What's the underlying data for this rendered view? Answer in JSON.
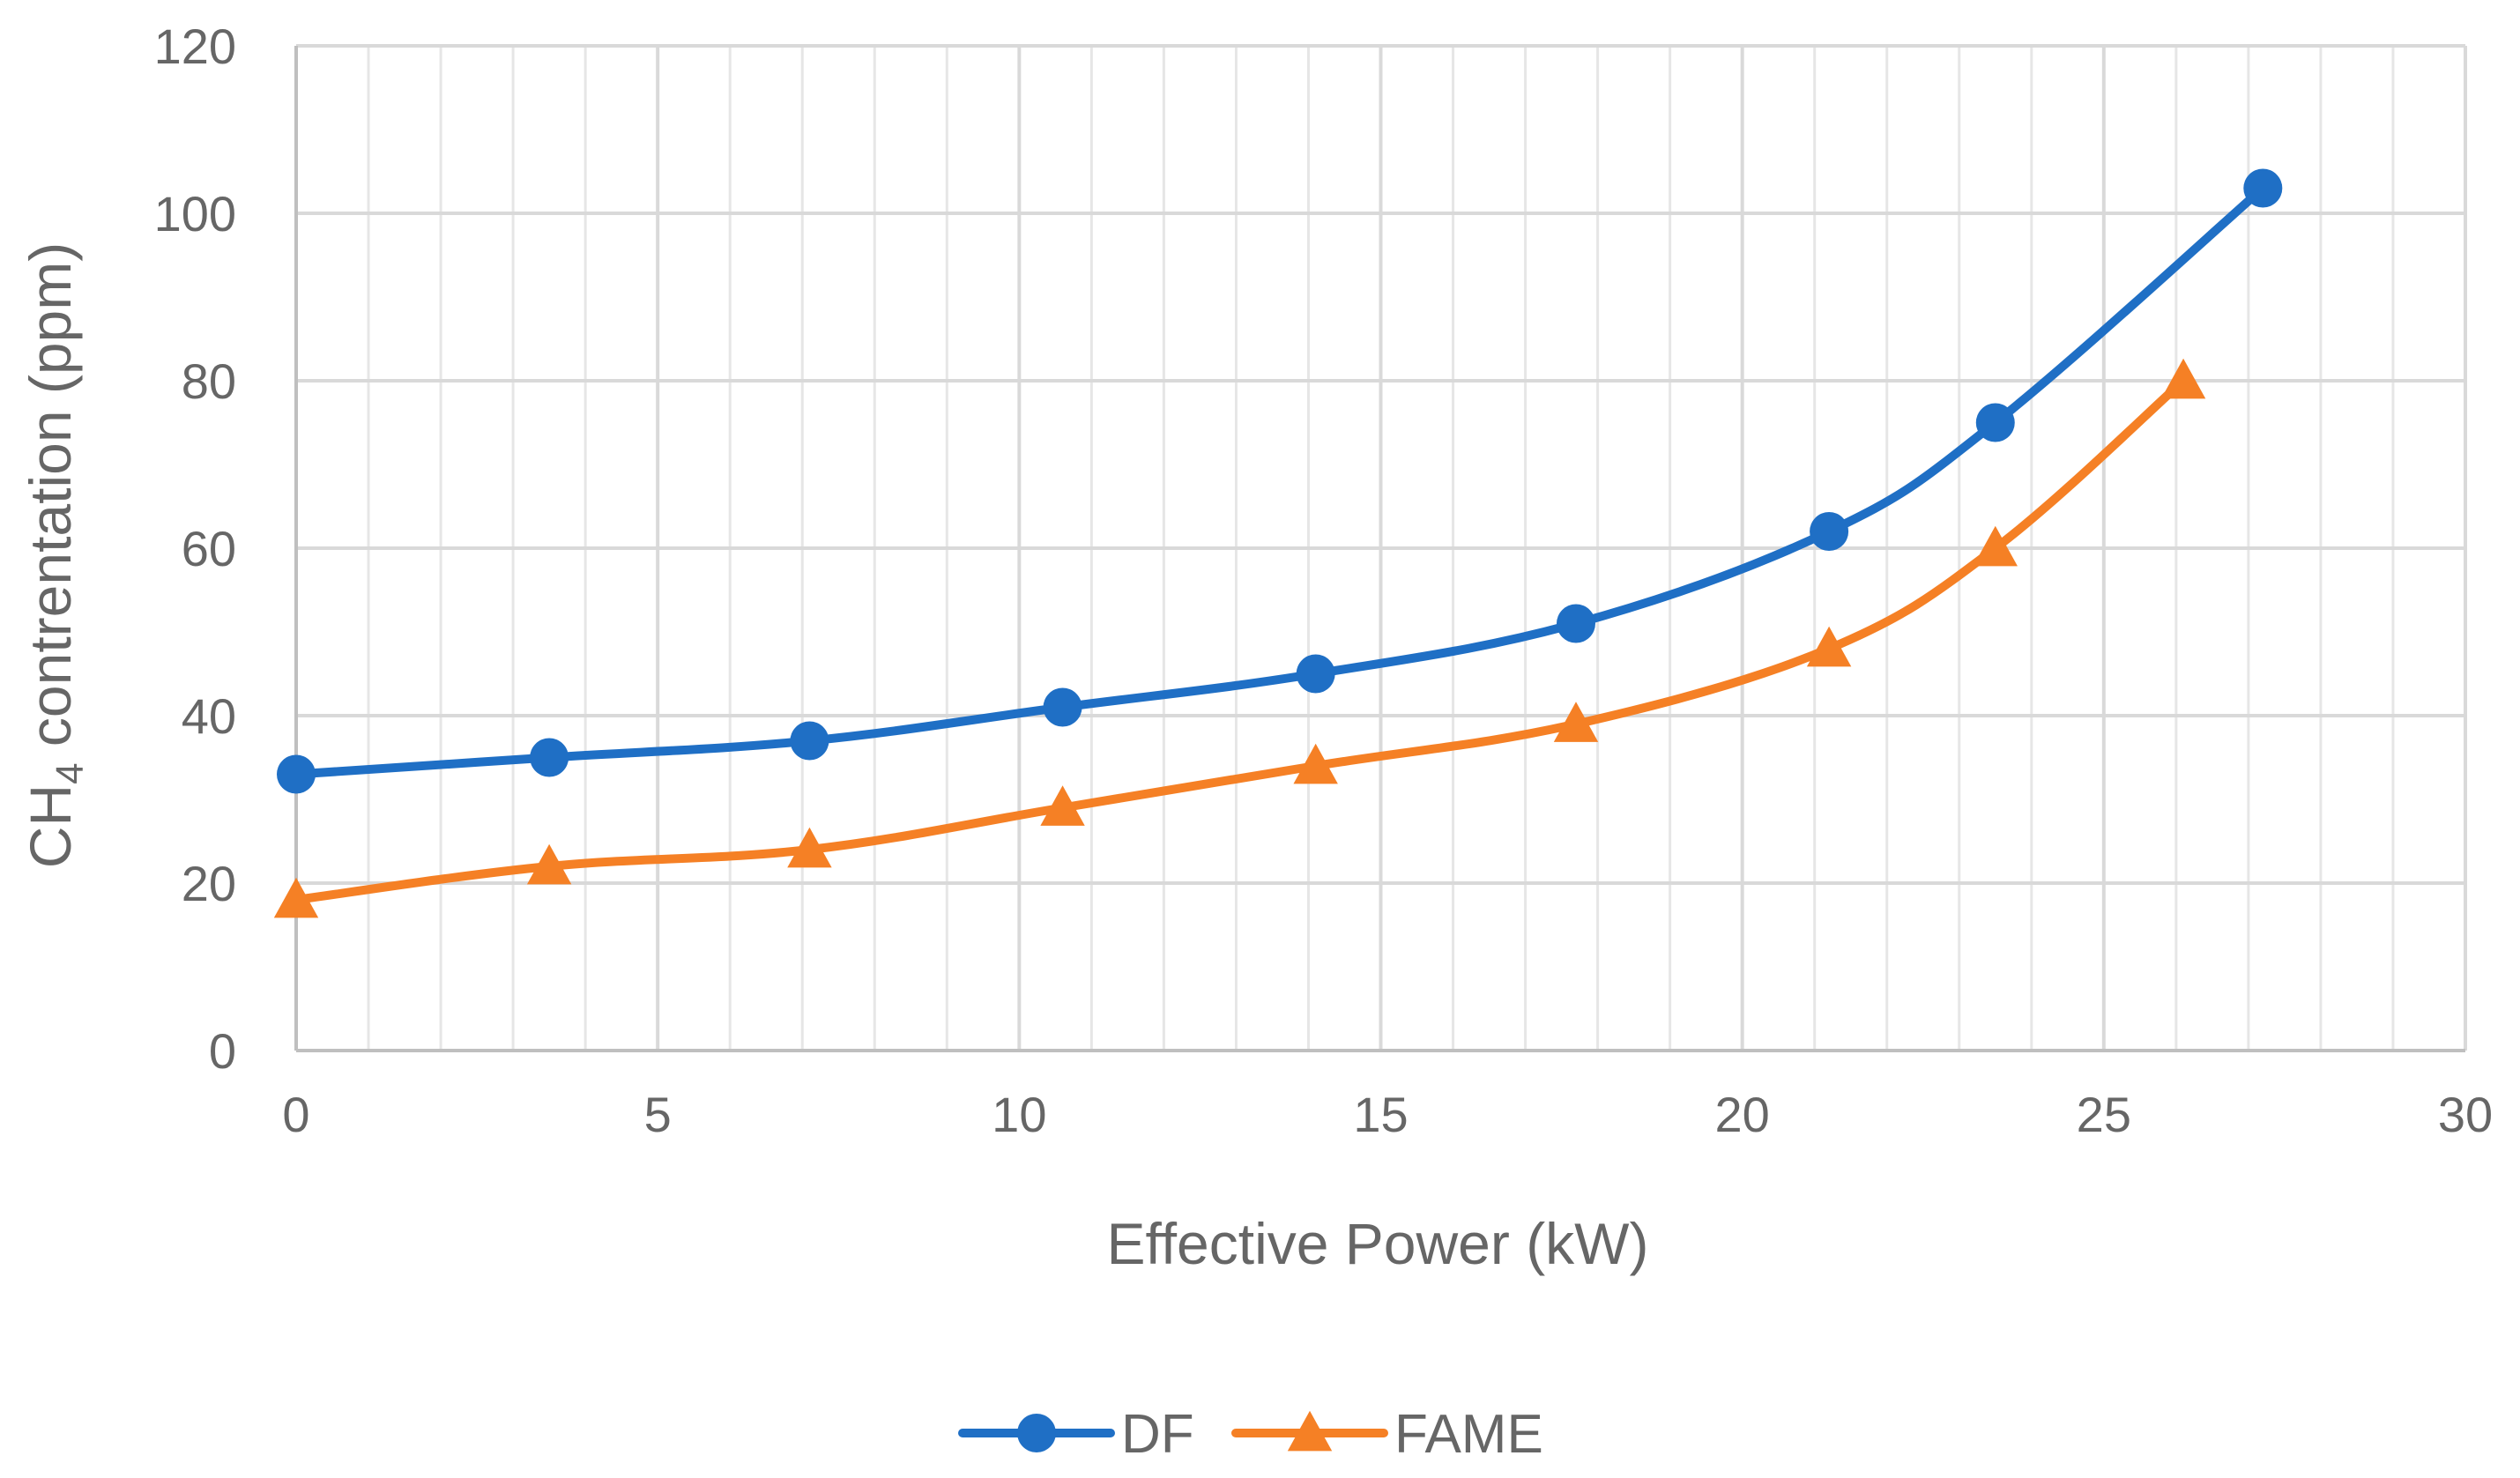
{
  "chart_data": {
    "type": "line",
    "title": "",
    "xlabel": "Effective Power (kW)",
    "ylabel_main": "CH",
    "ylabel_sub": "4",
    "ylabel_rest": " contrentation (ppm)",
    "xlim": [
      0,
      30
    ],
    "ylim": [
      0,
      120
    ],
    "xticks": [
      0,
      5,
      10,
      15,
      20,
      25,
      30
    ],
    "yticks": [
      0,
      20,
      40,
      60,
      80,
      100,
      120
    ],
    "x_minor_step": 1,
    "grid": true,
    "legend_position": "bottom",
    "series": [
      {
        "name": "DF",
        "color": "#1f6fc5",
        "marker": "circle",
        "x": [
          0,
          3.5,
          7.1,
          10.6,
          14.1,
          17.7,
          21.2,
          23.5,
          27.2
        ],
        "y": [
          33,
          35,
          37,
          41,
          45,
          51,
          62,
          75,
          103
        ]
      },
      {
        "name": "FAME",
        "color": "#f58025",
        "marker": "triangle",
        "x": [
          0,
          3.5,
          7.1,
          10.6,
          14.1,
          17.7,
          21.2,
          23.5,
          26.1
        ],
        "y": [
          18,
          22,
          24,
          29,
          34,
          39,
          48,
          60,
          80
        ]
      }
    ]
  }
}
